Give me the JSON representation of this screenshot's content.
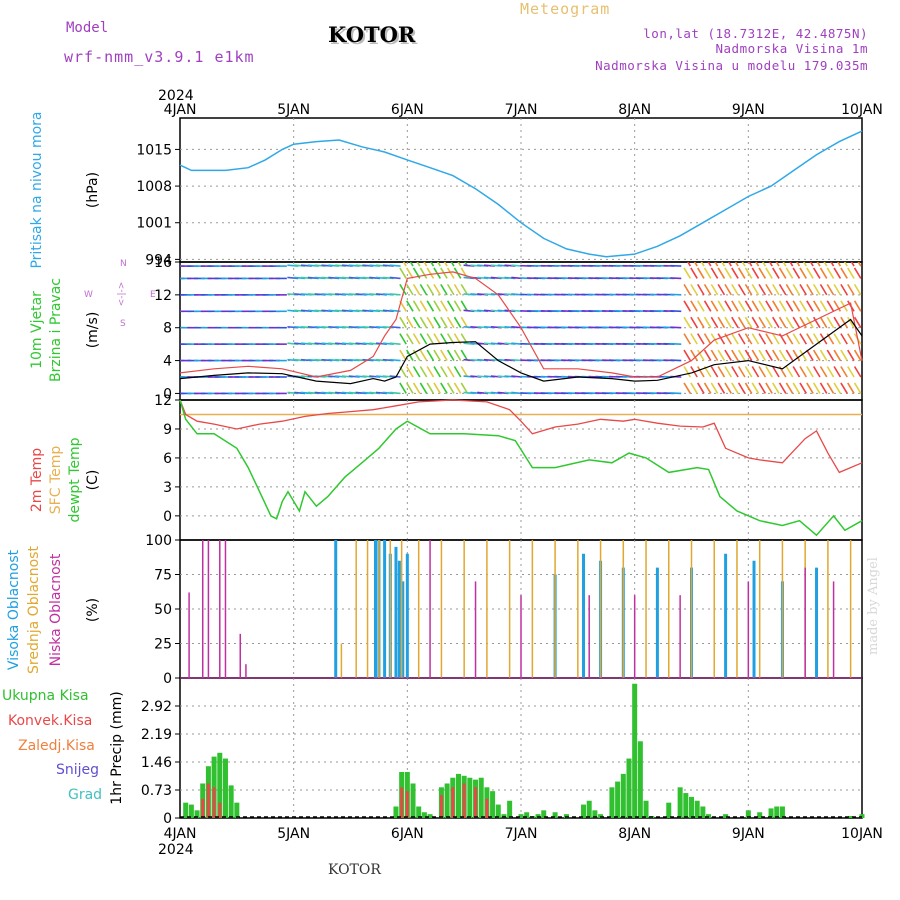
{
  "header": {
    "model_label": "Model",
    "model_name": "wrf-nmm_v3.9.1 e1km",
    "station": "KOTOR",
    "title": "Meteogram",
    "coords": "lon,lat (18.7312E, 42.4875N)",
    "altitude": "Nadmorska Visina 1m",
    "model_altitude": "Nadmorska Visina u modelu 179.035m"
  },
  "footer": {
    "station": "KOTOR",
    "credit": "made by Angel"
  },
  "colors": {
    "pressure": "#30a8e8",
    "temp2m": "#e84848",
    "sfctemp": "#e8b050",
    "dewpoint": "#30c830",
    "cloud_high": "#20a0e0",
    "cloud_mid": "#e0a830",
    "cloud_low": "#c030a0",
    "precip_total": "#30c030",
    "precip_conv": "#e84848",
    "precip_frz": "#f08040",
    "snow": "#6050d0",
    "graupel": "#40c0c0",
    "wind_label": "#30c830",
    "wind_dir_label": "#c070d0"
  },
  "chart_data": [
    {
      "type": "line",
      "panel": "pressure",
      "ylabel": [
        "Pritisak na nivou mora",
        "(hPa)"
      ],
      "yticks": [
        994,
        1001,
        1008,
        1015
      ],
      "ylim": [
        993.5,
        1021
      ],
      "x_start_year": "2024",
      "x_ticks": [
        "4JAN",
        "5JAN",
        "6JAN",
        "7JAN",
        "8JAN",
        "9JAN",
        "10JAN"
      ],
      "x_days": [
        0,
        1,
        2,
        3,
        4,
        5,
        6
      ],
      "grid": true,
      "series": [
        {
          "x": [
            0,
            0.1,
            0.2,
            0.4,
            0.6,
            0.75,
            0.9,
            1.0,
            1.2,
            1.4,
            1.6,
            1.8,
            2.0,
            2.2,
            2.4,
            2.6,
            2.8,
            3.0,
            3.2,
            3.4,
            3.6,
            3.75,
            4.0,
            4.2,
            4.4,
            4.6,
            4.8,
            5.0,
            5.2,
            5.4,
            5.6,
            5.8,
            6.0
          ],
          "values": [
            1012,
            1011,
            1011,
            1011,
            1011.5,
            1013,
            1015,
            1016,
            1016.5,
            1016.8,
            1015.5,
            1014.5,
            1013,
            1011.5,
            1010,
            1007.5,
            1004.5,
            1001,
            998,
            996,
            995,
            994.5,
            995,
            996.5,
            998.5,
            1001,
            1003.5,
            1006,
            1008,
            1011,
            1014,
            1016.5,
            1018.5
          ]
        }
      ]
    },
    {
      "type": "line",
      "panel": "wind",
      "ylabel": [
        "10m Vjetar",
        "Brzina i Pravac",
        "(m/s)"
      ],
      "direction_legend": [
        "N",
        "E",
        "W",
        "S",
        "<-|->"
      ],
      "yticks": [
        0,
        4,
        8,
        12,
        16
      ],
      "ylim": [
        -0.8,
        16
      ],
      "grid": true,
      "series": [
        {
          "name": "wind speed",
          "x": [
            0,
            0.3,
            0.6,
            0.9,
            1.2,
            1.5,
            1.7,
            1.8,
            1.9,
            2.0,
            2.2,
            2.4,
            2.6,
            2.8,
            3.0,
            3.2,
            3.5,
            3.8,
            4.0,
            4.2,
            4.5,
            4.7,
            5.0,
            5.3,
            5.6,
            5.9,
            6.0
          ],
          "values": [
            1.8,
            2.2,
            2.5,
            2.4,
            1.5,
            1.2,
            1.8,
            1.5,
            2.0,
            4.5,
            6.0,
            6.2,
            6.3,
            4.0,
            2.5,
            1.5,
            2.0,
            1.8,
            1.5,
            1.6,
            2.5,
            3.5,
            4.0,
            3.0,
            6.0,
            9.0,
            7.0
          ]
        },
        {
          "name": "gust",
          "x": [
            0,
            0.3,
            0.6,
            0.9,
            1.2,
            1.5,
            1.7,
            1.8,
            1.9,
            2.0,
            2.2,
            2.4,
            2.6,
            2.8,
            3.0,
            3.2,
            3.5,
            3.8,
            4.0,
            4.2,
            4.5,
            4.7,
            5.0,
            5.3,
            5.6,
            5.9,
            6.0
          ],
          "values": [
            2.5,
            3.0,
            3.3,
            3.0,
            2.0,
            2.8,
            4.5,
            7.0,
            9.0,
            14.0,
            14.5,
            14.8,
            14.0,
            12.0,
            8.0,
            3.0,
            3.0,
            2.5,
            2.0,
            2.0,
            4.0,
            6.5,
            8.0,
            7.0,
            9.0,
            11.0,
            4.0
          ]
        }
      ]
    },
    {
      "type": "line",
      "panel": "temperature",
      "ylabel": [
        "2m Temp",
        "SFC Temp",
        "dewpt Temp",
        "(C)"
      ],
      "yticks": [
        0,
        3,
        6,
        9,
        12
      ],
      "ylim": [
        -2.5,
        12
      ],
      "grid": true,
      "series": [
        {
          "name": "2m Temp",
          "x": [
            0,
            0.05,
            0.15,
            0.3,
            0.5,
            0.7,
            0.9,
            1.1,
            1.3,
            1.5,
            1.7,
            1.9,
            2.1,
            2.4,
            2.7,
            2.9,
            3.0,
            3.1,
            3.3,
            3.5,
            3.7,
            3.9,
            4.0,
            4.2,
            4.4,
            4.6,
            4.7,
            4.8,
            5.0,
            5.1,
            5.3,
            5.5,
            5.6,
            5.7,
            5.8,
            6.0
          ],
          "values": [
            12,
            10.5,
            9.8,
            9.5,
            9.0,
            9.5,
            9.8,
            10.3,
            10.6,
            10.8,
            11.0,
            11.4,
            11.8,
            12.0,
            11.8,
            11.0,
            9.8,
            8.5,
            9.2,
            9.5,
            10.0,
            9.8,
            10.0,
            9.6,
            9.3,
            9.2,
            9.6,
            7.0,
            6.0,
            5.8,
            5.5,
            8.0,
            8.8,
            6.5,
            4.5,
            5.5
          ]
        },
        {
          "name": "SFC Temp",
          "x": [
            0,
            6.0
          ],
          "values": [
            10.5,
            10.5
          ]
        },
        {
          "name": "dewpt Temp",
          "x": [
            0,
            0.05,
            0.15,
            0.3,
            0.5,
            0.6,
            0.7,
            0.8,
            0.85,
            0.9,
            0.95,
            1.05,
            1.1,
            1.2,
            1.3,
            1.45,
            1.6,
            1.75,
            1.9,
            2.0,
            2.2,
            2.5,
            2.8,
            2.95,
            3.1,
            3.3,
            3.6,
            3.8,
            3.95,
            4.1,
            4.3,
            4.55,
            4.65,
            4.75,
            4.9,
            5.1,
            5.3,
            5.45,
            5.6,
            5.75,
            5.85,
            6.0
          ],
          "values": [
            12,
            10.0,
            8.5,
            8.5,
            7.0,
            5.0,
            2.5,
            0.0,
            -0.3,
            1.5,
            2.5,
            0.5,
            2.5,
            1.0,
            2.0,
            4.0,
            5.5,
            7.0,
            9.0,
            9.8,
            8.5,
            8.5,
            8.3,
            7.8,
            5.0,
            5.0,
            5.8,
            5.5,
            6.5,
            6.0,
            4.5,
            5.0,
            4.8,
            2.0,
            0.5,
            -0.5,
            -1.0,
            -0.5,
            -2.0,
            0.0,
            -1.5,
            -0.5
          ]
        }
      ]
    },
    {
      "type": "bar",
      "panel": "cloud",
      "ylabel": [
        "Visoka Oblacnost",
        "Srednja Oblacnost",
        "Niska Oblacnost",
        "(%)"
      ],
      "yticks": [
        0,
        25,
        50,
        75,
        100
      ],
      "ylim": [
        0,
        100
      ],
      "grid": true,
      "series": [
        {
          "name": "Visoka Oblacnost",
          "x": [
            1.37,
            1.72,
            1.75,
            1.8,
            1.85,
            1.9,
            1.93,
            1.96,
            2.0,
            3.3,
            3.55,
            3.7,
            3.9,
            4.2,
            4.5,
            4.8,
            5.05,
            5.3,
            5.6
          ],
          "values": [
            100,
            100,
            100,
            100,
            90,
            95,
            85,
            70,
            90,
            75,
            90,
            85,
            80,
            80,
            80,
            90,
            85,
            70,
            80
          ]
        },
        {
          "name": "Srednja Oblacnost",
          "x": [
            1.42,
            1.55,
            1.65,
            1.75,
            1.85,
            1.95,
            2.1,
            2.3,
            2.5,
            2.7,
            2.9,
            3.1,
            3.3,
            3.5,
            3.7,
            3.9,
            4.1,
            4.3,
            4.5,
            4.7,
            4.9,
            5.1,
            5.3,
            5.5,
            5.7,
            5.9
          ],
          "values": [
            25,
            100,
            100,
            100,
            100,
            100,
            100,
            100,
            100,
            100,
            100,
            100,
            100,
            100,
            100,
            100,
            100,
            100,
            100,
            100,
            100,
            100,
            100,
            100,
            100,
            100
          ]
        },
        {
          "name": "Niska Oblacnost",
          "x": [
            0.08,
            0.2,
            0.25,
            0.35,
            0.4,
            0.53,
            0.58,
            2.2,
            2.6,
            3.0,
            3.6,
            4.0,
            4.4,
            5.0,
            5.5,
            5.75
          ],
          "values": [
            62,
            100,
            100,
            100,
            100,
            32,
            10,
            100,
            70,
            60,
            60,
            60,
            60,
            70,
            80,
            70
          ]
        }
      ]
    },
    {
      "type": "bar",
      "panel": "precipitation",
      "ylabel": [
        "1hr Precip (mm)"
      ],
      "legend": [
        "Ukupna Kisa",
        "Konvek.Kisa",
        "Zaledj.Kisa",
        "Snijeg",
        "Grad"
      ],
      "yticks": [
        0,
        0.73,
        1.46,
        2.19,
        2.92
      ],
      "ylim": [
        0,
        3.65
      ],
      "x_ticks": [
        "4JAN",
        "5JAN",
        "6JAN",
        "7JAN",
        "8JAN",
        "9JAN",
        "10JAN"
      ],
      "x_end_year": "2024",
      "grid": true,
      "series": [
        {
          "name": "Ukupna Kisa",
          "x": [
            0.05,
            0.1,
            0.15,
            0.2,
            0.25,
            0.3,
            0.35,
            0.4,
            0.45,
            0.5,
            1.9,
            1.95,
            2.0,
            2.05,
            2.1,
            2.15,
            2.2,
            2.3,
            2.35,
            2.4,
            2.45,
            2.5,
            2.55,
            2.6,
            2.65,
            2.7,
            2.75,
            2.8,
            2.85,
            2.9,
            3.0,
            3.05,
            3.1,
            3.15,
            3.2,
            3.3,
            3.4,
            3.55,
            3.6,
            3.65,
            3.7,
            3.8,
            3.85,
            3.9,
            3.95,
            4.0,
            4.05,
            4.1,
            4.15,
            4.3,
            4.4,
            4.45,
            4.5,
            4.55,
            4.6,
            4.65,
            4.8,
            5.0,
            5.1,
            5.2,
            5.25,
            5.3,
            5.9,
            6.0
          ],
          "values": [
            0.4,
            0.35,
            0.2,
            0.9,
            1.35,
            1.6,
            1.7,
            1.55,
            0.85,
            0.4,
            0.3,
            1.2,
            1.2,
            0.9,
            0.3,
            0.15,
            0.1,
            0.8,
            0.9,
            1.05,
            1.15,
            1.1,
            1.05,
            1.0,
            1.05,
            0.8,
            0.7,
            0.35,
            0.1,
            0.45,
            0.1,
            0.15,
            0.05,
            0.1,
            0.2,
            0.15,
            0.1,
            0.35,
            0.45,
            0.2,
            0.1,
            0.8,
            0.95,
            1.15,
            1.55,
            3.5,
            2.0,
            0.45,
            0.05,
            0.4,
            0.8,
            0.65,
            0.55,
            0.45,
            0.3,
            0.1,
            0.1,
            0.2,
            0.15,
            0.25,
            0.3,
            0.3,
            0.05,
            0.1
          ]
        },
        {
          "name": "Konvek.Kisa",
          "x": [
            0.2,
            0.25,
            0.3,
            0.35,
            1.95,
            2.0,
            2.3,
            2.4,
            2.5,
            2.6,
            2.7
          ],
          "values": [
            0.5,
            0.9,
            0.8,
            0.4,
            0.8,
            0.7,
            0.6,
            0.8,
            0.9,
            0.8,
            0.5
          ]
        }
      ]
    }
  ]
}
